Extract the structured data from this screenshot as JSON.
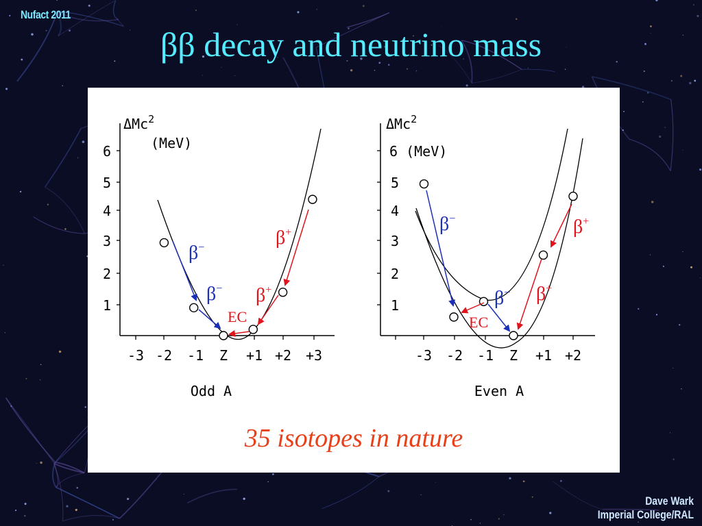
{
  "header": {
    "conference": "Nufact 2011",
    "title": "ββ decay and neutrino mass"
  },
  "footer": {
    "author": "Dave Wark",
    "affiliation": "Imperial College/RAL"
  },
  "caption": "35 isotopes in nature",
  "colors": {
    "title": "#55ecff",
    "caption": "#e8401a",
    "beta_minus": "#1c2fb8",
    "beta_plus": "#e0141c"
  },
  "diagram": {
    "odd": {
      "axis_label_line1": "ΔMc",
      "axis_label_sup": "2",
      "axis_label_line2": "(MeV)",
      "y_ticks": [
        "6",
        "5",
        "4",
        "3",
        "2",
        "1"
      ],
      "x_ticks": [
        "-3",
        "-2",
        "-1",
        "Z",
        "+1",
        "+2",
        "+3"
      ],
      "x_label": "Odd A",
      "points": [
        {
          "x": -2,
          "y": 3.0
        },
        {
          "x": -1,
          "y": 0.9
        },
        {
          "x": 0,
          "y": 0.0
        },
        {
          "x": 1,
          "y": 0.2
        },
        {
          "x": 2,
          "y": 1.4
        },
        {
          "x": 3,
          "y": 4.4
        }
      ],
      "labels": {
        "beta_minus_1": "β",
        "beta_minus_1_sup": "−",
        "beta_minus_2": "β",
        "beta_minus_2_sup": "−",
        "beta_plus_1": "β",
        "beta_plus_1_sup": "+",
        "beta_plus_2": "β",
        "beta_plus_2_sup": "+",
        "ec": "EC"
      }
    },
    "even": {
      "axis_label_line1": "ΔMc",
      "axis_label_sup": "2",
      "axis_label_line2": "6 (MeV)",
      "y_ticks": [
        "5",
        "4",
        "3",
        "2",
        "1"
      ],
      "x_ticks": [
        "-3",
        "-2",
        "-1",
        "Z",
        "+1",
        "+2"
      ],
      "x_label": "Even A",
      "points_upper": [
        {
          "x": -3,
          "y": 4.9
        },
        {
          "x": -1,
          "y": 1.1
        },
        {
          "x": 1,
          "y": 2.6
        }
      ],
      "points_lower": [
        {
          "x": -2,
          "y": 0.6
        },
        {
          "x": 0,
          "y": 0.0
        },
        {
          "x": 2,
          "y": 4.5
        }
      ],
      "labels": {
        "beta_minus_1": "β",
        "beta_minus_1_sup": "−",
        "beta_minus_2": "β",
        "beta_minus_2_sup": "−",
        "beta_plus_1": "β",
        "beta_plus_1_sup": "+",
        "beta_plus_2": "β",
        "beta_plus_2_sup": "+",
        "ec": "EC"
      }
    }
  }
}
